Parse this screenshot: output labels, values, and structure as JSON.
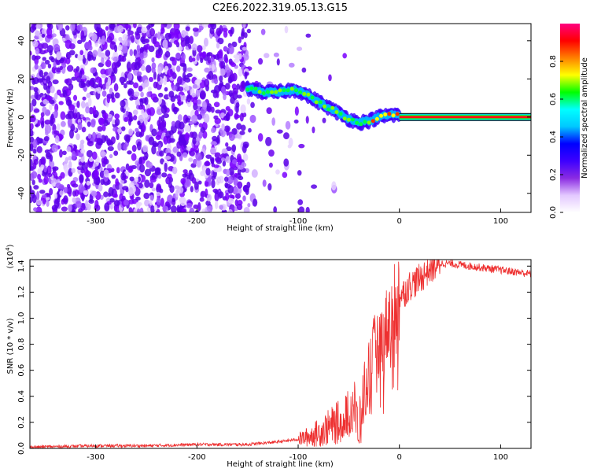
{
  "title": "C2E6.2022.319.05.13.G15",
  "chart_data": [
    {
      "type": "heatmap",
      "xlabel": "Height of straight line (km)",
      "ylabel": "Frequency (Hz)",
      "xlim": [
        -365,
        130
      ],
      "ylim": [
        -50,
        49
      ],
      "x_ticks": [
        "-300",
        "-200",
        "-100",
        "0",
        "100"
      ],
      "x_tick_values": [
        -300,
        -200,
        -100,
        0,
        100
      ],
      "y_ticks": [
        "-40",
        "-20",
        "0",
        "20",
        "40"
      ],
      "y_tick_values": [
        -40,
        -20,
        0,
        20,
        40
      ],
      "colorbar": {
        "label": "Normalized spectral amplitude",
        "range": [
          0,
          1
        ],
        "ticks": [
          "0.0",
          "0.2",
          "0.4",
          "0.6",
          "0.8"
        ],
        "tick_values": [
          0.0,
          0.2,
          0.4,
          0.6,
          0.8
        ],
        "colormap": [
          "#ffffff",
          "#e3c8ff",
          "#8a2be2",
          "#3d00ff",
          "#0000ff",
          "#00c8ff",
          "#00ffff",
          "#00ff00",
          "#ffff00",
          "#ff8000",
          "#ff0000",
          "#ff0080"
        ]
      },
      "signal_trace": {
        "x": [
          -150,
          -140,
          -130,
          -120,
          -110,
          -100,
          -90,
          -80,
          -70,
          -60,
          -50,
          -40,
          -30,
          -20,
          -10,
          0,
          20,
          60,
          100,
          130
        ],
        "y": [
          15,
          14,
          13,
          13,
          14,
          14,
          11,
          8,
          5,
          2,
          -1,
          -3,
          -2,
          0,
          1,
          1,
          0,
          0,
          0,
          0
        ]
      },
      "noise_region_x": [
        -365,
        -100
      ]
    },
    {
      "type": "line",
      "xlabel": "Height of straight line (km)",
      "ylabel": "SNR (10 * v/v)",
      "y_multiplier": "(x10^4)",
      "xlim": [
        -365,
        130
      ],
      "ylim": [
        0,
        1.45
      ],
      "x_ticks": [
        "-300",
        "-200",
        "-100",
        "0",
        "100"
      ],
      "x_tick_values": [
        -300,
        -200,
        -100,
        0,
        100
      ],
      "y_ticks": [
        "0.0",
        "0.2",
        "0.4",
        "0.6",
        "0.8",
        "1.0",
        "1.2",
        "1.4"
      ],
      "y_tick_values": [
        0.0,
        0.2,
        0.4,
        0.6,
        0.8,
        1.0,
        1.2,
        1.4
      ],
      "color": "#ee3030",
      "x": [
        -365,
        -300,
        -250,
        -200,
        -150,
        -120,
        -100,
        -90,
        -80,
        -70,
        -60,
        -50,
        -45,
        -40,
        -35,
        -30,
        -25,
        -20,
        -15,
        -10,
        -5,
        0,
        5,
        10,
        20,
        30,
        40,
        50,
        60,
        80,
        100,
        120,
        130
      ],
      "y": [
        0.01,
        0.02,
        0.02,
        0.03,
        0.03,
        0.05,
        0.07,
        0.09,
        0.12,
        0.16,
        0.2,
        0.28,
        0.35,
        0.1,
        0.45,
        0.6,
        0.75,
        0.82,
        0.88,
        1.0,
        1.1,
        1.18,
        1.2,
        1.25,
        1.3,
        1.38,
        1.42,
        1.42,
        1.41,
        1.39,
        1.37,
        1.35,
        1.34
      ]
    }
  ]
}
